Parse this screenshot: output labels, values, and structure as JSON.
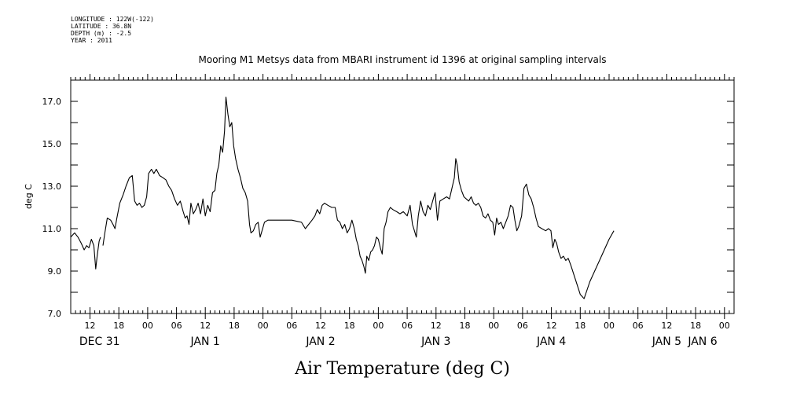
{
  "header": {
    "meta_lines": [
      "LONGITUDE : 122W(-122)",
      "LATITUDE : 36.8N",
      "DEPTH (m) : -2.5",
      "YEAR : 2011"
    ]
  },
  "chart_data": {
    "type": "line",
    "title": "Mooring M1 Metsys data from MBARI instrument id 1396 at original sampling intervals",
    "xlabel": "Air Temperature (deg C)",
    "ylabel": "deg C",
    "ylim": [
      7.0,
      18.0
    ],
    "xlim_hours": [
      8,
      146
    ],
    "y_ticks": [
      "7.0",
      "9.0",
      "11.0",
      "13.0",
      "15.0",
      "17.0"
    ],
    "x_hour_ticks": [
      {
        "h": 12,
        "label": "12"
      },
      {
        "h": 18,
        "label": "18"
      },
      {
        "h": 24,
        "label": "00"
      },
      {
        "h": 30,
        "label": "06"
      },
      {
        "h": 36,
        "label": "12"
      },
      {
        "h": 42,
        "label": "18"
      },
      {
        "h": 48,
        "label": "00"
      },
      {
        "h": 54,
        "label": "06"
      },
      {
        "h": 60,
        "label": "12"
      },
      {
        "h": 66,
        "label": "18"
      },
      {
        "h": 72,
        "label": "00"
      },
      {
        "h": 78,
        "label": "06"
      },
      {
        "h": 84,
        "label": "12"
      },
      {
        "h": 90,
        "label": "18"
      },
      {
        "h": 96,
        "label": "00"
      },
      {
        "h": 102,
        "label": "06"
      },
      {
        "h": 108,
        "label": "12"
      },
      {
        "h": 114,
        "label": "18"
      },
      {
        "h": 120,
        "label": "00"
      },
      {
        "h": 126,
        "label": "06"
      },
      {
        "h": 132,
        "label": "12"
      },
      {
        "h": 138,
        "label": "18"
      },
      {
        "h": 144,
        "label": "00"
      }
    ],
    "x_day_labels": [
      {
        "h": 14,
        "label": "DEC 31"
      },
      {
        "h": 36,
        "label": "JAN  1"
      },
      {
        "h": 60,
        "label": "JAN  2"
      },
      {
        "h": 84,
        "label": "JAN  3"
      },
      {
        "h": 108,
        "label": "JAN  4"
      },
      {
        "h": 132,
        "label": "JAN  5"
      },
      {
        "h": 156,
        "label": "JAN  6"
      }
    ],
    "grid": false,
    "series": [
      {
        "segments": [
          [
            [
              8.0,
              10.6
            ],
            [
              8.8,
              10.8
            ],
            [
              9.5,
              10.6
            ],
            [
              10.2,
              10.3
            ],
            [
              10.8,
              10.0
            ],
            [
              11.3,
              10.2
            ],
            [
              11.8,
              10.1
            ],
            [
              12.3,
              10.5
            ],
            [
              12.8,
              10.2
            ],
            [
              13.2,
              9.1
            ],
            [
              13.5,
              9.7
            ],
            [
              13.9,
              10.4
            ],
            [
              14.2,
              10.6
            ]
          ],
          [
            [
              14.7,
              10.2
            ],
            [
              15.1,
              10.8
            ],
            [
              15.6,
              11.5
            ],
            [
              16.3,
              11.4
            ],
            [
              16.8,
              11.2
            ],
            [
              17.2,
              11.0
            ],
            [
              17.6,
              11.5
            ],
            [
              18.2,
              12.2
            ],
            [
              18.9,
              12.6
            ],
            [
              19.5,
              13.0
            ],
            [
              20.2,
              13.4
            ],
            [
              20.8,
              13.5
            ],
            [
              21.3,
              12.3
            ],
            [
              21.8,
              12.1
            ],
            [
              22.3,
              12.2
            ],
            [
              22.8,
              12.0
            ],
            [
              23.3,
              12.1
            ],
            [
              23.8,
              12.5
            ],
            [
              24.2,
              13.6
            ],
            [
              24.8,
              13.8
            ],
            [
              25.3,
              13.6
            ],
            [
              25.8,
              13.8
            ],
            [
              26.5,
              13.5
            ],
            [
              27.2,
              13.4
            ],
            [
              27.8,
              13.3
            ],
            [
              28.4,
              13.0
            ],
            [
              29.0,
              12.8
            ],
            [
              29.6,
              12.4
            ],
            [
              30.2,
              12.1
            ],
            [
              30.8,
              12.3
            ],
            [
              31.4,
              11.8
            ],
            [
              31.8,
              11.5
            ],
            [
              32.2,
              11.6
            ],
            [
              32.6,
              11.2
            ],
            [
              33.0,
              12.2
            ],
            [
              33.5,
              11.7
            ],
            [
              34.0,
              11.9
            ],
            [
              34.5,
              12.2
            ],
            [
              35.0,
              11.7
            ],
            [
              35.5,
              12.4
            ],
            [
              36.0,
              11.6
            ],
            [
              36.5,
              12.1
            ],
            [
              37.0,
              11.8
            ],
            [
              37.5,
              12.7
            ],
            [
              38.0,
              12.8
            ],
            [
              38.4,
              13.6
            ],
            [
              38.8,
              14.0
            ],
            [
              39.2,
              14.9
            ],
            [
              39.6,
              14.6
            ],
            [
              40.0,
              15.6
            ],
            [
              40.3,
              17.2
            ],
            [
              40.7,
              16.4
            ],
            [
              41.1,
              15.8
            ],
            [
              41.5,
              16.0
            ],
            [
              41.9,
              14.9
            ],
            [
              42.3,
              14.3
            ],
            [
              42.8,
              13.8
            ],
            [
              43.3,
              13.4
            ],
            [
              43.8,
              12.9
            ],
            [
              44.3,
              12.7
            ],
            [
              44.8,
              12.3
            ],
            [
              45.2,
              11.2
            ],
            [
              45.5,
              10.8
            ],
            [
              46.0,
              10.9
            ],
            [
              46.5,
              11.2
            ],
            [
              47.0,
              11.3
            ],
            [
              47.4,
              10.6
            ],
            [
              47.8,
              10.9
            ],
            [
              48.3,
              11.3
            ],
            [
              49.0,
              11.4
            ],
            [
              50.0,
              11.4
            ],
            [
              52.0,
              11.4
            ],
            [
              54.0,
              11.4
            ],
            [
              56.0,
              11.3
            ],
            [
              56.8,
              11.0
            ],
            [
              57.5,
              11.2
            ],
            [
              58.2,
              11.4
            ],
            [
              58.8,
              11.6
            ],
            [
              59.3,
              11.9
            ],
            [
              59.8,
              11.7
            ],
            [
              60.3,
              12.1
            ],
            [
              60.8,
              12.2
            ],
            [
              61.5,
              12.1
            ],
            [
              62.3,
              12.0
            ],
            [
              63.0,
              12.0
            ],
            [
              63.5,
              11.4
            ],
            [
              64.0,
              11.3
            ],
            [
              64.5,
              11.0
            ],
            [
              65.0,
              11.2
            ],
            [
              65.5,
              10.8
            ],
            [
              66.0,
              11.0
            ],
            [
              66.5,
              11.4
            ],
            [
              67.0,
              11.0
            ],
            [
              67.4,
              10.5
            ],
            [
              67.8,
              10.2
            ],
            [
              68.2,
              9.7
            ],
            [
              68.6,
              9.5
            ],
            [
              69.0,
              9.2
            ],
            [
              69.3,
              8.9
            ],
            [
              69.6,
              9.7
            ],
            [
              70.0,
              9.5
            ],
            [
              70.4,
              9.9
            ],
            [
              70.8,
              10.0
            ],
            [
              71.2,
              10.2
            ],
            [
              71.6,
              10.6
            ],
            [
              72.0,
              10.5
            ],
            [
              72.4,
              10.1
            ],
            [
              72.8,
              9.8
            ],
            [
              73.2,
              11.0
            ],
            [
              73.6,
              11.3
            ],
            [
              74.0,
              11.8
            ],
            [
              74.5,
              12.0
            ],
            [
              75.0,
              11.9
            ],
            [
              75.8,
              11.8
            ],
            [
              76.5,
              11.7
            ],
            [
              77.2,
              11.8
            ],
            [
              78.0,
              11.6
            ],
            [
              78.6,
              12.1
            ],
            [
              79.1,
              11.2
            ],
            [
              79.5,
              10.9
            ],
            [
              79.9,
              10.6
            ],
            [
              80.3,
              11.6
            ],
            [
              80.8,
              12.3
            ],
            [
              81.3,
              11.8
            ],
            [
              81.8,
              11.6
            ],
            [
              82.3,
              12.1
            ],
            [
              82.8,
              11.9
            ],
            [
              83.3,
              12.3
            ],
            [
              83.8,
              12.7
            ],
            [
              84.3,
              11.4
            ],
            [
              84.8,
              12.3
            ],
            [
              85.5,
              12.4
            ],
            [
              86.2,
              12.5
            ],
            [
              86.8,
              12.4
            ],
            [
              87.3,
              12.9
            ],
            [
              87.8,
              13.4
            ],
            [
              88.1,
              14.3
            ],
            [
              88.4,
              14.0
            ],
            [
              88.8,
              13.2
            ],
            [
              89.3,
              12.8
            ],
            [
              89.8,
              12.5
            ],
            [
              90.3,
              12.4
            ],
            [
              90.8,
              12.3
            ],
            [
              91.3,
              12.5
            ],
            [
              91.8,
              12.2
            ],
            [
              92.3,
              12.1
            ],
            [
              92.8,
              12.2
            ],
            [
              93.3,
              12.0
            ],
            [
              93.8,
              11.6
            ],
            [
              94.3,
              11.5
            ],
            [
              94.8,
              11.7
            ],
            [
              95.3,
              11.4
            ],
            [
              95.8,
              11.3
            ],
            [
              96.2,
              10.7
            ],
            [
              96.6,
              11.5
            ],
            [
              97.0,
              11.2
            ],
            [
              97.5,
              11.3
            ],
            [
              98.0,
              11.0
            ],
            [
              98.5,
              11.3
            ],
            [
              99.0,
              11.6
            ],
            [
              99.5,
              12.1
            ],
            [
              100.0,
              12.0
            ],
            [
              100.4,
              11.4
            ],
            [
              100.8,
              10.9
            ],
            [
              101.2,
              11.1
            ],
            [
              101.8,
              11.6
            ],
            [
              102.3,
              12.9
            ],
            [
              102.8,
              13.1
            ],
            [
              103.3,
              12.6
            ],
            [
              103.8,
              12.4
            ],
            [
              104.3,
              12.0
            ],
            [
              104.8,
              11.5
            ],
            [
              105.3,
              11.1
            ],
            [
              106.0,
              11.0
            ],
            [
              106.8,
              10.9
            ],
            [
              107.4,
              11.0
            ],
            [
              107.9,
              10.9
            ],
            [
              108.3,
              10.1
            ],
            [
              108.7,
              10.5
            ],
            [
              109.1,
              10.3
            ],
            [
              109.5,
              9.9
            ],
            [
              110.0,
              9.6
            ],
            [
              110.5,
              9.7
            ],
            [
              111.0,
              9.5
            ],
            [
              111.5,
              9.6
            ],
            [
              112.0,
              9.3
            ],
            [
              113.0,
              8.6
            ],
            [
              114.0,
              7.9
            ],
            [
              114.8,
              7.7
            ],
            [
              116.0,
              8.5
            ],
            [
              118.0,
              9.5
            ],
            [
              120.0,
              10.5
            ],
            [
              121.0,
              10.9
            ]
          ]
        ]
      }
    ]
  }
}
